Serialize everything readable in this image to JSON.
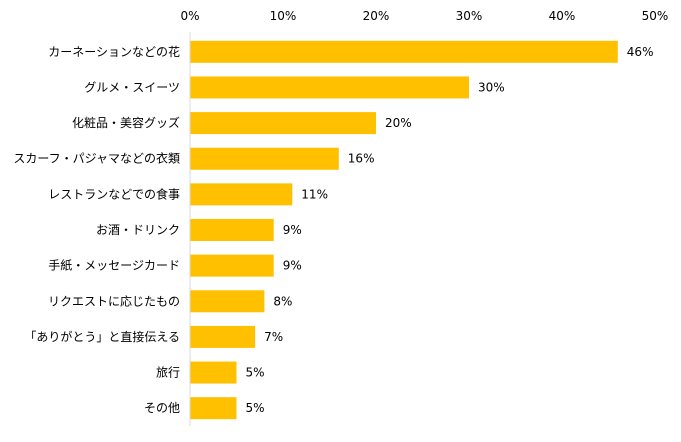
{
  "chart_data": {
    "type": "bar",
    "orientation": "horizontal",
    "categories": [
      "カーネーションなどの花",
      "グルメ・スイーツ",
      "化粧品・美容グッズ",
      "スカーフ・パジャマなどの衣類",
      "レストランなどでの食事",
      "お酒・ドリンク",
      "手紙・メッセージカード",
      "リクエストに応じたもの",
      "「ありがとう」と直接伝える",
      "旅行",
      "その他"
    ],
    "values": [
      46,
      30,
      20,
      16,
      11,
      9,
      9,
      8,
      7,
      5,
      5
    ],
    "value_labels": [
      "46%",
      "30%",
      "20%",
      "16%",
      "11%",
      "9%",
      "9%",
      "8%",
      "7%",
      "5%",
      "5%"
    ],
    "xlim": [
      0,
      50
    ],
    "x_ticks": [
      0,
      10,
      20,
      30,
      40,
      50
    ],
    "x_tick_labels": [
      "0%",
      "10%",
      "20%",
      "30%",
      "40%",
      "50%"
    ],
    "x_axis_position": "top",
    "grid": false,
    "legend": "none",
    "colors": {
      "bar": "#FFC000",
      "axis": "#D9D9D9",
      "text": "#000000"
    }
  }
}
